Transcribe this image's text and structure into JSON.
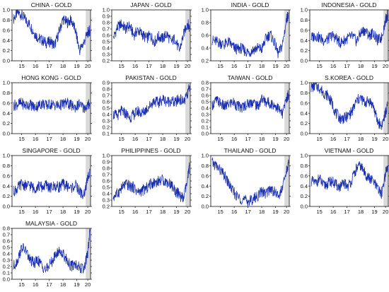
{
  "chart_data": [
    {
      "type": "line",
      "title": "CHINA - GOLD",
      "ylim": [
        0.0,
        1.0
      ],
      "yticks": [
        "0.0",
        "0.2",
        "0.4",
        "0.6",
        "0.8",
        "1.0"
      ],
      "xticks": [
        "15",
        "16",
        "17",
        "18",
        "19",
        "20"
      ],
      "highlight_x": [
        2019.85,
        2020.2
      ],
      "series": [
        {
          "x": [
            2014.6,
            2014.9,
            2015.2,
            2015.5,
            2015.8,
            2016.1,
            2016.4,
            2016.7,
            2017.0,
            2017.3,
            2017.6,
            2017.9,
            2018.2,
            2018.5,
            2018.8,
            2019.1,
            2019.4,
            2019.7,
            2020.0,
            2020.15
          ],
          "values": [
            0.82,
            0.95,
            0.9,
            0.8,
            0.7,
            0.55,
            0.45,
            0.4,
            0.35,
            0.38,
            0.3,
            0.55,
            0.82,
            0.75,
            0.8,
            0.6,
            0.2,
            0.35,
            0.55,
            0.6
          ]
        }
      ]
    },
    {
      "type": "line",
      "title": "JAPAN - GOLD",
      "ylim": [
        0.2,
        1.0
      ],
      "yticks": [
        "0.2",
        "0.3",
        "0.4",
        "0.5",
        "0.6",
        "0.7",
        "0.8",
        "0.9",
        "1.0"
      ],
      "xticks": [
        "15",
        "16",
        "17",
        "18",
        "19",
        "20"
      ],
      "highlight_x": [
        2019.85,
        2020.2
      ],
      "series": [
        {
          "x": [
            2014.6,
            2014.9,
            2015.2,
            2015.5,
            2015.8,
            2016.1,
            2016.4,
            2016.7,
            2017.0,
            2017.3,
            2017.6,
            2017.9,
            2018.2,
            2018.5,
            2018.8,
            2019.1,
            2019.4,
            2019.7,
            2020.0,
            2020.15
          ],
          "values": [
            0.55,
            0.72,
            0.78,
            0.7,
            0.75,
            0.6,
            0.68,
            0.62,
            0.55,
            0.6,
            0.5,
            0.58,
            0.55,
            0.62,
            0.5,
            0.55,
            0.35,
            0.6,
            0.8,
            0.7
          ]
        }
      ]
    },
    {
      "type": "line",
      "title": "INDIA - GOLD",
      "ylim": [
        0.2,
        1.0
      ],
      "yticks": [
        "0.2",
        "0.4",
        "0.6",
        "0.8",
        "1.0"
      ],
      "xticks": [
        "15",
        "16",
        "17",
        "18",
        "19",
        "20"
      ],
      "highlight_x": [
        2019.85,
        2020.2
      ],
      "series": [
        {
          "x": [
            2014.6,
            2014.9,
            2015.2,
            2015.5,
            2015.8,
            2016.1,
            2016.4,
            2016.7,
            2017.0,
            2017.3,
            2017.6,
            2017.9,
            2018.2,
            2018.5,
            2018.8,
            2019.1,
            2019.4,
            2019.7,
            2020.0,
            2020.15
          ],
          "values": [
            0.52,
            0.5,
            0.48,
            0.45,
            0.5,
            0.42,
            0.38,
            0.4,
            0.35,
            0.33,
            0.38,
            0.4,
            0.38,
            0.55,
            0.62,
            0.5,
            0.3,
            0.45,
            0.85,
            0.95
          ]
        }
      ]
    },
    {
      "type": "line",
      "title": "INDONESIA - GOLD",
      "ylim": [
        0.0,
        1.0
      ],
      "yticks": [
        "0.0",
        "0.2",
        "0.4",
        "0.6",
        "0.8",
        "1.0"
      ],
      "xticks": [
        "15",
        "16",
        "17",
        "18",
        "19",
        "20"
      ],
      "highlight_x": [
        2019.85,
        2020.2
      ],
      "series": [
        {
          "x": [
            2014.6,
            2014.9,
            2015.2,
            2015.5,
            2015.8,
            2016.1,
            2016.4,
            2016.7,
            2017.0,
            2017.3,
            2017.6,
            2017.9,
            2018.2,
            2018.5,
            2018.8,
            2019.1,
            2019.4,
            2019.7,
            2020.0,
            2020.15
          ],
          "values": [
            0.45,
            0.5,
            0.45,
            0.4,
            0.42,
            0.5,
            0.45,
            0.35,
            0.4,
            0.45,
            0.48,
            0.38,
            0.55,
            0.6,
            0.5,
            0.55,
            0.4,
            0.45,
            0.8,
            0.9
          ]
        }
      ]
    },
    {
      "type": "line",
      "title": "HONG KONG - GOLD",
      "ylim": [
        0.0,
        1.0
      ],
      "yticks": [
        "0.0",
        "0.2",
        "0.4",
        "0.6",
        "0.8",
        "1.0"
      ],
      "xticks": [
        "15",
        "16",
        "17",
        "18",
        "19",
        "20"
      ],
      "highlight_x": [
        2019.85,
        2020.2
      ],
      "series": [
        {
          "x": [
            2014.6,
            2014.9,
            2015.2,
            2015.5,
            2015.8,
            2016.1,
            2016.4,
            2016.7,
            2017.0,
            2017.3,
            2017.6,
            2017.9,
            2018.2,
            2018.5,
            2018.8,
            2019.1,
            2019.4,
            2019.7,
            2020.0,
            2020.15
          ],
          "values": [
            0.55,
            0.58,
            0.6,
            0.55,
            0.58,
            0.52,
            0.55,
            0.6,
            0.55,
            0.58,
            0.56,
            0.55,
            0.58,
            0.6,
            0.55,
            0.52,
            0.58,
            0.5,
            0.55,
            0.6
          ]
        }
      ]
    },
    {
      "type": "line",
      "title": "PAKISTAN - GOLD",
      "ylim": [
        0.1,
        0.9
      ],
      "yticks": [
        "0.1",
        "0.2",
        "0.3",
        "0.4",
        "0.5",
        "0.6",
        "0.7",
        "0.8",
        "0.9"
      ],
      "xticks": [
        "15",
        "16",
        "17",
        "18",
        "19",
        "20"
      ],
      "highlight_x": [
        2019.85,
        2020.2
      ],
      "series": [
        {
          "x": [
            2014.6,
            2014.9,
            2015.2,
            2015.5,
            2015.8,
            2016.1,
            2016.4,
            2016.7,
            2017.0,
            2017.3,
            2017.6,
            2017.9,
            2018.2,
            2018.5,
            2018.8,
            2019.1,
            2019.4,
            2019.7,
            2020.0,
            2020.15
          ],
          "values": [
            0.4,
            0.38,
            0.45,
            0.42,
            0.35,
            0.4,
            0.45,
            0.42,
            0.48,
            0.55,
            0.62,
            0.58,
            0.65,
            0.6,
            0.62,
            0.58,
            0.65,
            0.6,
            0.7,
            0.85
          ]
        }
      ]
    },
    {
      "type": "line",
      "title": "TAIWAN - GOLD",
      "ylim": [
        0.0,
        0.8
      ],
      "yticks": [
        "0.0",
        "0.1",
        "0.2",
        "0.3",
        "0.4",
        "0.5",
        "0.6",
        "0.7",
        "0.8"
      ],
      "xticks": [
        "15",
        "16",
        "17",
        "18",
        "19",
        "20"
      ],
      "highlight_x": [
        2019.85,
        2020.2
      ],
      "series": [
        {
          "x": [
            2014.6,
            2014.9,
            2015.2,
            2015.5,
            2015.8,
            2016.1,
            2016.4,
            2016.7,
            2017.0,
            2017.3,
            2017.6,
            2017.9,
            2018.2,
            2018.5,
            2018.8,
            2019.1,
            2019.4,
            2019.7,
            2020.0,
            2020.15
          ],
          "values": [
            0.45,
            0.52,
            0.48,
            0.42,
            0.46,
            0.5,
            0.44,
            0.4,
            0.45,
            0.48,
            0.5,
            0.42,
            0.55,
            0.5,
            0.48,
            0.45,
            0.4,
            0.3,
            0.55,
            0.62
          ]
        }
      ]
    },
    {
      "type": "line",
      "title": "S.KOREA - GOLD",
      "ylim": [
        0.0,
        1.0
      ],
      "yticks": [
        "0.0",
        "0.2",
        "0.4",
        "0.6",
        "0.8",
        "1.0"
      ],
      "xticks": [
        "15",
        "16",
        "17",
        "18",
        "19",
        "20"
      ],
      "highlight_x": [
        2019.85,
        2020.2
      ],
      "series": [
        {
          "x": [
            2014.6,
            2014.9,
            2015.2,
            2015.5,
            2015.8,
            2016.1,
            2016.4,
            2016.7,
            2017.0,
            2017.3,
            2017.6,
            2017.9,
            2018.2,
            2018.5,
            2018.8,
            2019.1,
            2019.4,
            2019.7,
            2020.0,
            2020.15
          ],
          "values": [
            0.9,
            0.95,
            0.9,
            0.8,
            0.75,
            0.6,
            0.4,
            0.3,
            0.3,
            0.35,
            0.45,
            0.65,
            0.7,
            0.6,
            0.65,
            0.55,
            0.25,
            0.15,
            0.4,
            0.55
          ]
        }
      ]
    },
    {
      "type": "line",
      "title": "SINGAPORE - GOLD",
      "ylim": [
        0.0,
        1.0
      ],
      "yticks": [
        "0.0",
        "0.2",
        "0.4",
        "0.6",
        "0.8",
        "1.0"
      ],
      "xticks": [
        "15",
        "16",
        "17",
        "18",
        "19",
        "20"
      ],
      "highlight_x": [
        2019.85,
        2020.2
      ],
      "series": [
        {
          "x": [
            2014.6,
            2014.9,
            2015.2,
            2015.5,
            2015.8,
            2016.1,
            2016.4,
            2016.7,
            2017.0,
            2017.3,
            2017.6,
            2017.9,
            2018.2,
            2018.5,
            2018.8,
            2019.1,
            2019.4,
            2019.7,
            2020.0,
            2020.15
          ],
          "values": [
            0.3,
            0.35,
            0.45,
            0.4,
            0.42,
            0.35,
            0.4,
            0.38,
            0.42,
            0.36,
            0.4,
            0.38,
            0.44,
            0.4,
            0.36,
            0.42,
            0.3,
            0.2,
            0.55,
            0.72
          ]
        }
      ]
    },
    {
      "type": "line",
      "title": "PHILIPPINES - GOLD",
      "ylim": [
        0.2,
        1.0
      ],
      "yticks": [
        "0.2",
        "0.3",
        "0.4",
        "0.5",
        "0.6",
        "0.7",
        "0.8",
        "0.9",
        "1.0"
      ],
      "xticks": [
        "15",
        "16",
        "17",
        "18",
        "19",
        "20"
      ],
      "highlight_x": [
        2019.85,
        2020.2
      ],
      "series": [
        {
          "x": [
            2014.6,
            2014.9,
            2015.2,
            2015.5,
            2015.8,
            2016.1,
            2016.4,
            2016.7,
            2017.0,
            2017.3,
            2017.6,
            2017.9,
            2018.2,
            2018.5,
            2018.8,
            2019.1,
            2019.4,
            2019.7,
            2020.0,
            2020.15
          ],
          "values": [
            0.35,
            0.4,
            0.48,
            0.55,
            0.52,
            0.5,
            0.42,
            0.45,
            0.48,
            0.55,
            0.58,
            0.6,
            0.62,
            0.58,
            0.55,
            0.45,
            0.38,
            0.32,
            0.6,
            0.85
          ]
        }
      ]
    },
    {
      "type": "line",
      "title": "THAILAND - GOLD",
      "ylim": [
        0.0,
        1.0
      ],
      "yticks": [
        "0.0",
        "0.2",
        "0.4",
        "0.6",
        "0.8",
        "1.0"
      ],
      "xticks": [
        "15",
        "16",
        "17",
        "18",
        "19",
        "20"
      ],
      "highlight_x": [
        2019.85,
        2020.2
      ],
      "series": [
        {
          "x": [
            2014.6,
            2014.9,
            2015.2,
            2015.5,
            2015.8,
            2016.1,
            2016.4,
            2016.7,
            2017.0,
            2017.3,
            2017.6,
            2017.9,
            2018.2,
            2018.5,
            2018.8,
            2019.1,
            2019.4,
            2019.7,
            2020.0,
            2020.15
          ],
          "values": [
            0.85,
            0.8,
            0.7,
            0.6,
            0.45,
            0.3,
            0.2,
            0.15,
            0.12,
            0.1,
            0.15,
            0.2,
            0.3,
            0.25,
            0.35,
            0.3,
            0.2,
            0.35,
            0.7,
            0.85
          ]
        }
      ]
    },
    {
      "type": "line",
      "title": "VIETNAM - GOLD",
      "ylim": [
        0.0,
        1.0
      ],
      "yticks": [
        "0.0",
        "0.2",
        "0.4",
        "0.6",
        "0.8",
        "1.0"
      ],
      "xticks": [
        "15",
        "16",
        "17",
        "18",
        "19",
        "20"
      ],
      "highlight_x": [
        2019.85,
        2020.2
      ],
      "series": [
        {
          "x": [
            2014.6,
            2014.9,
            2015.2,
            2015.5,
            2015.8,
            2016.1,
            2016.4,
            2016.7,
            2017.0,
            2017.3,
            2017.6,
            2017.9,
            2018.2,
            2018.5,
            2018.8,
            2019.1,
            2019.4,
            2019.7,
            2020.0,
            2020.15
          ],
          "values": [
            0.5,
            0.45,
            0.55,
            0.4,
            0.45,
            0.5,
            0.42,
            0.38,
            0.45,
            0.4,
            0.55,
            0.75,
            0.8,
            0.65,
            0.55,
            0.5,
            0.35,
            0.25,
            0.65,
            0.8
          ]
        }
      ]
    },
    {
      "type": "line",
      "title": "MALAYSIA - GOLD",
      "ylim": [
        0.0,
        0.8
      ],
      "yticks": [
        "0.0",
        "0.1",
        "0.2",
        "0.3",
        "0.4",
        "0.5",
        "0.6",
        "0.7",
        "0.8"
      ],
      "xticks": [
        "15",
        "16",
        "17",
        "18",
        "19",
        "20"
      ],
      "highlight_x": [
        2019.85,
        2020.2
      ],
      "series": [
        {
          "x": [
            2014.6,
            2014.9,
            2015.2,
            2015.5,
            2015.8,
            2016.1,
            2016.4,
            2016.7,
            2017.0,
            2017.3,
            2017.6,
            2017.9,
            2018.2,
            2018.5,
            2018.8,
            2019.1,
            2019.4,
            2019.7,
            2020.0,
            2020.15
          ],
          "values": [
            0.2,
            0.3,
            0.5,
            0.45,
            0.3,
            0.25,
            0.3,
            0.2,
            0.15,
            0.25,
            0.35,
            0.45,
            0.4,
            0.3,
            0.2,
            0.25,
            0.18,
            0.15,
            0.4,
            0.75
          ]
        }
      ]
    }
  ],
  "colors": {
    "line": "#1a2fb0",
    "line_dark": "#0a1560",
    "highlight": "#d9d9d9",
    "axis": "#111111",
    "background": "#ffffff"
  }
}
